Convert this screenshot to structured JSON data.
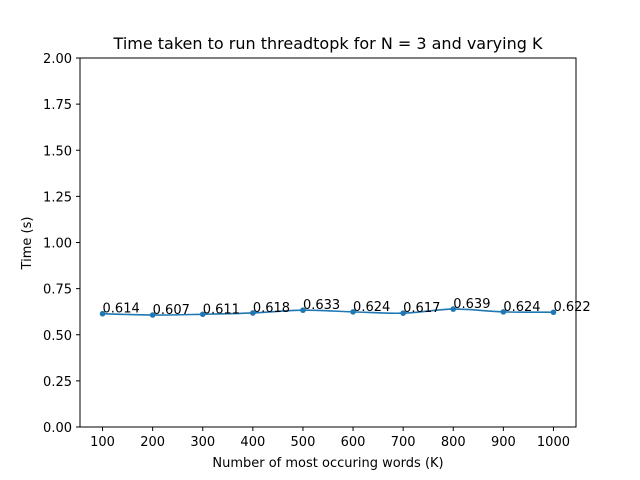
{
  "chart_data": {
    "type": "line",
    "title": "Time taken to run threadtopk for N = 3 and varying K",
    "xlabel": "Number of most occuring words (K)",
    "ylabel": "Time (s)",
    "x": [
      100,
      200,
      300,
      400,
      500,
      600,
      700,
      800,
      900,
      1000
    ],
    "series": [
      {
        "values": [
          0.614,
          0.607,
          0.611,
          0.618,
          0.633,
          0.624,
          0.617,
          0.639,
          0.624,
          0.622
        ],
        "labels": [
          "0.614",
          "0.607",
          "0.611",
          "0.618",
          "0.633",
          "0.624",
          "0.617",
          "0.639",
          "0.624",
          "0.622"
        ],
        "color": "#1f77b4"
      }
    ],
    "xticks": [
      100,
      200,
      300,
      400,
      500,
      600,
      700,
      800,
      900,
      1000
    ],
    "xtick_labels": [
      "100",
      "200",
      "300",
      "400",
      "500",
      "600",
      "700",
      "800",
      "900",
      "1000"
    ],
    "yticks": [
      0,
      0.25,
      0.5,
      0.75,
      1.0,
      1.25,
      1.5,
      1.75,
      2.0
    ],
    "ytick_labels": [
      "0.00",
      "0.25",
      "0.50",
      "0.75",
      "1.00",
      "1.25",
      "1.50",
      "1.75",
      "2.00"
    ],
    "xlim": [
      55,
      1045
    ],
    "ylim": [
      0,
      2.0
    ],
    "grid": false,
    "legend": false
  }
}
